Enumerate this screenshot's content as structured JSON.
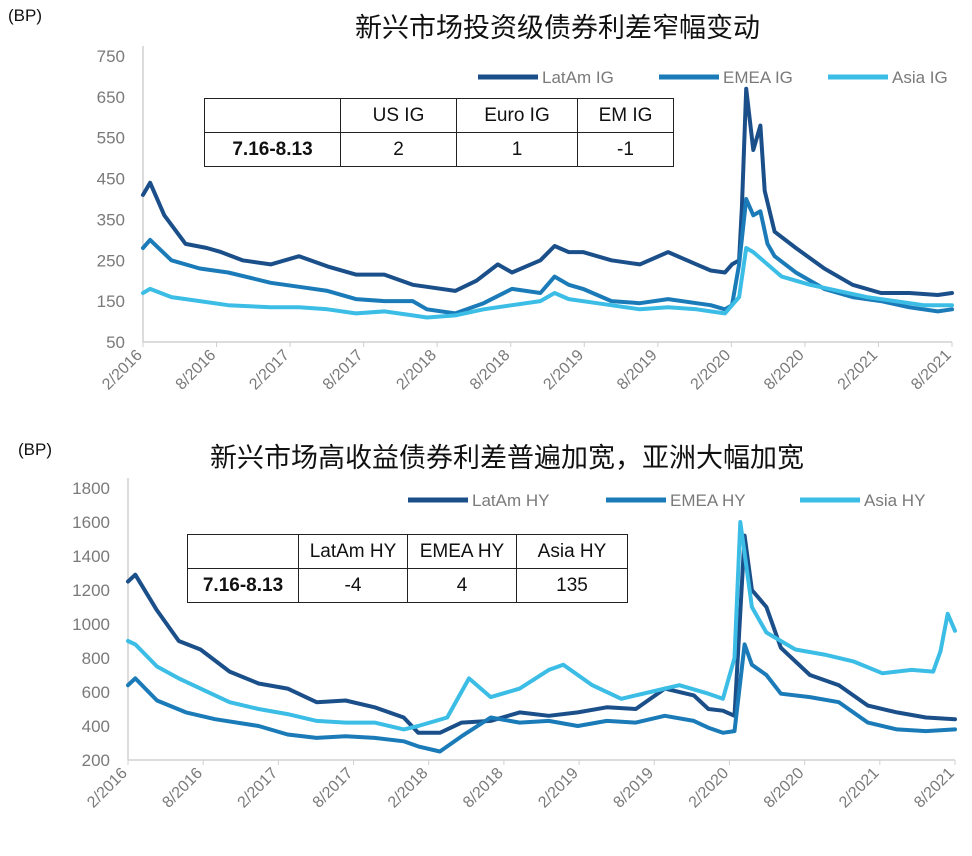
{
  "colors": {
    "latam": "#1b4f8a",
    "emea": "#1a7bb8",
    "asia": "#3bbde6",
    "axis": "#d0d0d0",
    "text": "#7a7a7a"
  },
  "ig": {
    "unit": "(BP)",
    "title": "新兴市场投资级债券利差窄幅变动",
    "table": {
      "headers": [
        "US IG",
        "Euro IG",
        "EM IG"
      ],
      "row_label": "7.16-8.13",
      "values": [
        "2",
        "1",
        "-1"
      ]
    }
  },
  "hy": {
    "unit": "(BP)",
    "title": "新兴市场高收益债券利差普遍加宽，亚洲大幅加宽",
    "table": {
      "headers": [
        "LatAm HY",
        "EMEA HY",
        "Asia HY"
      ],
      "row_label": "7.16-8.13",
      "values": [
        "-4",
        "4",
        "135"
      ]
    }
  },
  "chart_data": [
    {
      "type": "line",
      "title": "新兴市场投资级债券利差窄幅变动",
      "ylabel": "(BP)",
      "ylim": [
        50,
        750
      ],
      "yticks": [
        50,
        150,
        250,
        350,
        450,
        550,
        650,
        750
      ],
      "xlim": [
        2016.0,
        2021.7
      ],
      "xticks": [
        "2/2016",
        "8/2016",
        "2/2017",
        "8/2017",
        "2/2018",
        "8/2018",
        "2/2019",
        "8/2019",
        "2/2020",
        "8/2020",
        "2/2021",
        "8/2021"
      ],
      "legend_position": "top",
      "series": [
        {
          "name": "LatAm IG",
          "x": [
            2016.0,
            2016.05,
            2016.15,
            2016.3,
            2016.45,
            2016.55,
            2016.7,
            2016.9,
            2017.1,
            2017.3,
            2017.5,
            2017.7,
            2017.9,
            2018.0,
            2018.2,
            2018.35,
            2018.5,
            2018.6,
            2018.8,
            2018.9,
            2019.0,
            2019.1,
            2019.3,
            2019.5,
            2019.7,
            2019.9,
            2020.0,
            2020.1,
            2020.15,
            2020.2,
            2020.22,
            2020.25,
            2020.3,
            2020.35,
            2020.38,
            2020.45,
            2020.6,
            2020.8,
            2021.0,
            2021.2,
            2021.4,
            2021.6,
            2021.7
          ],
          "values": [
            410,
            440,
            360,
            290,
            280,
            270,
            250,
            240,
            260,
            235,
            215,
            215,
            190,
            185,
            175,
            200,
            240,
            220,
            250,
            285,
            270,
            270,
            250,
            240,
            270,
            240,
            225,
            220,
            240,
            250,
            380,
            670,
            520,
            580,
            420,
            320,
            280,
            230,
            190,
            170,
            170,
            165,
            170
          ]
        },
        {
          "name": "EMEA IG",
          "x": [
            2016.0,
            2016.05,
            2016.2,
            2016.4,
            2016.6,
            2016.9,
            2017.1,
            2017.3,
            2017.5,
            2017.7,
            2017.9,
            2018.0,
            2018.2,
            2018.4,
            2018.6,
            2018.8,
            2018.9,
            2019.0,
            2019.1,
            2019.3,
            2019.5,
            2019.7,
            2019.9,
            2020.0,
            2020.1,
            2020.15,
            2020.2,
            2020.25,
            2020.3,
            2020.35,
            2020.4,
            2020.45,
            2020.6,
            2020.8,
            2021.0,
            2021.2,
            2021.4,
            2021.6,
            2021.7
          ],
          "values": [
            280,
            300,
            250,
            230,
            220,
            195,
            185,
            175,
            155,
            150,
            150,
            130,
            120,
            145,
            180,
            170,
            210,
            190,
            180,
            150,
            145,
            155,
            145,
            140,
            130,
            140,
            240,
            400,
            360,
            370,
            290,
            260,
            220,
            180,
            160,
            150,
            135,
            125,
            130
          ]
        },
        {
          "name": "Asia IG",
          "x": [
            2016.0,
            2016.05,
            2016.2,
            2016.4,
            2016.6,
            2016.9,
            2017.1,
            2017.3,
            2017.5,
            2017.7,
            2017.9,
            2018.0,
            2018.2,
            2018.4,
            2018.6,
            2018.8,
            2018.9,
            2019.0,
            2019.2,
            2019.5,
            2019.7,
            2019.9,
            2020.0,
            2020.1,
            2020.2,
            2020.25,
            2020.3,
            2020.4,
            2020.5,
            2020.7,
            2020.9,
            2021.1,
            2021.3,
            2021.5,
            2021.7
          ],
          "values": [
            170,
            180,
            160,
            150,
            140,
            135,
            135,
            130,
            120,
            125,
            115,
            110,
            115,
            130,
            140,
            150,
            170,
            155,
            145,
            130,
            135,
            130,
            125,
            120,
            160,
            280,
            270,
            240,
            210,
            190,
            175,
            160,
            150,
            140,
            140
          ]
        }
      ]
    },
    {
      "type": "line",
      "title": "新兴市场高收益债券利差普遍加宽，亚洲大幅加宽",
      "ylabel": "(BP)",
      "ylim": [
        200,
        1800
      ],
      "yticks": [
        200,
        400,
        600,
        800,
        1000,
        1200,
        1400,
        1600,
        1800
      ],
      "xlim": [
        2016.0,
        2021.7
      ],
      "xticks": [
        "2/2016",
        "8/2016",
        "2/2017",
        "8/2017",
        "2/2018",
        "8/2018",
        "2/2019",
        "8/2019",
        "2/2020",
        "8/2020",
        "2/2021",
        "8/2021"
      ],
      "legend_position": "top",
      "series": [
        {
          "name": "LatAm HY",
          "x": [
            2016.0,
            2016.05,
            2016.2,
            2016.35,
            2016.5,
            2016.7,
            2016.9,
            2017.1,
            2017.3,
            2017.5,
            2017.7,
            2017.9,
            2018.0,
            2018.15,
            2018.3,
            2018.5,
            2018.7,
            2018.9,
            2019.1,
            2019.3,
            2019.5,
            2019.7,
            2019.9,
            2020.0,
            2020.1,
            2020.18,
            2020.25,
            2020.3,
            2020.4,
            2020.5,
            2020.7,
            2020.9,
            2021.1,
            2021.3,
            2021.5,
            2021.7
          ],
          "values": [
            1250,
            1290,
            1080,
            900,
            850,
            720,
            650,
            620,
            540,
            550,
            510,
            450,
            360,
            360,
            420,
            430,
            480,
            460,
            480,
            510,
            500,
            620,
            580,
            500,
            490,
            460,
            1520,
            1200,
            1100,
            860,
            700,
            640,
            520,
            480,
            450,
            440
          ]
        },
        {
          "name": "EMEA HY",
          "x": [
            2016.0,
            2016.05,
            2016.2,
            2016.4,
            2016.6,
            2016.9,
            2017.1,
            2017.3,
            2017.5,
            2017.7,
            2017.9,
            2018.0,
            2018.15,
            2018.3,
            2018.5,
            2018.7,
            2018.9,
            2019.1,
            2019.3,
            2019.5,
            2019.7,
            2019.9,
            2020.0,
            2020.1,
            2020.18,
            2020.25,
            2020.3,
            2020.4,
            2020.5,
            2020.7,
            2020.9,
            2021.1,
            2021.3,
            2021.5,
            2021.7
          ],
          "values": [
            640,
            680,
            550,
            480,
            440,
            400,
            350,
            330,
            340,
            330,
            310,
            280,
            250,
            340,
            450,
            420,
            430,
            400,
            430,
            420,
            460,
            430,
            390,
            360,
            370,
            880,
            760,
            700,
            590,
            570,
            540,
            420,
            380,
            370,
            380
          ]
        },
        {
          "name": "Asia HY",
          "x": [
            2016.0,
            2016.05,
            2016.2,
            2016.35,
            2016.5,
            2016.7,
            2016.9,
            2017.1,
            2017.3,
            2017.5,
            2017.7,
            2017.9,
            2018.0,
            2018.2,
            2018.35,
            2018.5,
            2018.7,
            2018.9,
            2019.0,
            2019.2,
            2019.4,
            2019.6,
            2019.8,
            2020.0,
            2020.1,
            2020.18,
            2020.22,
            2020.3,
            2020.4,
            2020.6,
            2020.8,
            2021.0,
            2021.2,
            2021.4,
            2021.55,
            2021.6,
            2021.65,
            2021.7
          ],
          "values": [
            900,
            880,
            750,
            680,
            620,
            540,
            500,
            470,
            430,
            420,
            420,
            380,
            400,
            450,
            680,
            570,
            620,
            730,
            760,
            640,
            560,
            600,
            640,
            590,
            560,
            800,
            1600,
            1100,
            950,
            850,
            820,
            780,
            710,
            730,
            720,
            840,
            1060,
            960
          ]
        }
      ]
    }
  ]
}
